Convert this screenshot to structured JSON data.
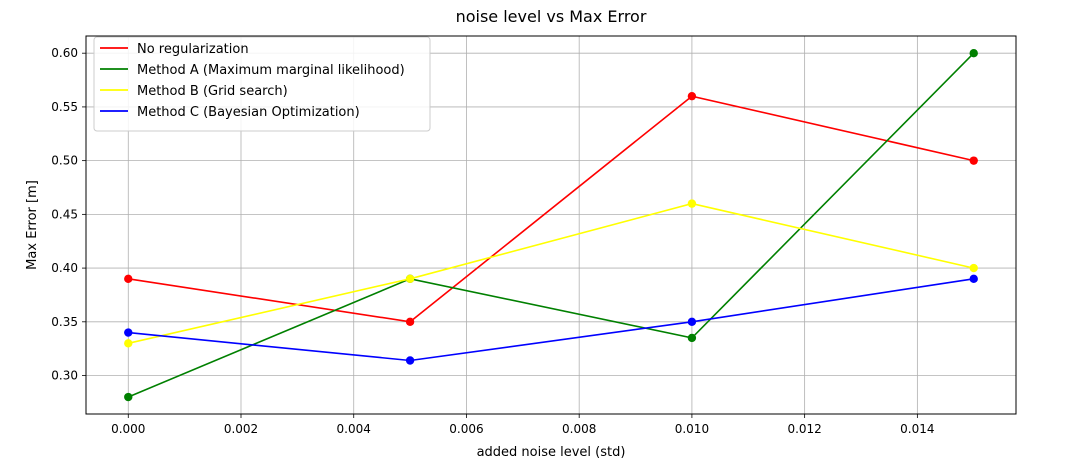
{
  "chart_data": {
    "type": "line",
    "title": "noise level vs Max Error",
    "xlabel": "added noise level (std)",
    "ylabel": "Max Error [m]",
    "xlim": [
      -0.00075,
      0.01575
    ],
    "ylim": [
      0.2642,
      0.616
    ],
    "xticks": [
      0.0,
      0.002,
      0.004,
      0.006,
      0.008,
      0.01,
      0.012,
      0.014
    ],
    "xtick_labels": [
      "0.000",
      "0.002",
      "0.004",
      "0.006",
      "0.008",
      "0.010",
      "0.012",
      "0.014"
    ],
    "yticks": [
      0.3,
      0.35,
      0.4,
      0.45,
      0.5,
      0.55,
      0.6
    ],
    "ytick_labels": [
      "0.30",
      "0.35",
      "0.40",
      "0.45",
      "0.50",
      "0.55",
      "0.60"
    ],
    "grid": true,
    "legend_position": "top-left",
    "x": [
      0.0,
      0.005,
      0.01,
      0.015
    ],
    "series": [
      {
        "name": "No regularization",
        "color": "#ff0000",
        "values": [
          0.39,
          0.35,
          0.56,
          0.5
        ]
      },
      {
        "name": "Method A (Maximum marginal likelihood)",
        "color": "#008000",
        "values": [
          0.28,
          0.39,
          0.335,
          0.6
        ]
      },
      {
        "name": "Method B (Grid search)",
        "color": "#ffff00",
        "values": [
          0.33,
          0.39,
          0.46,
          0.4
        ]
      },
      {
        "name": "Method C (Bayesian Optimization)",
        "color": "#0000ff",
        "values": [
          0.34,
          0.314,
          0.35,
          0.39
        ]
      }
    ]
  }
}
